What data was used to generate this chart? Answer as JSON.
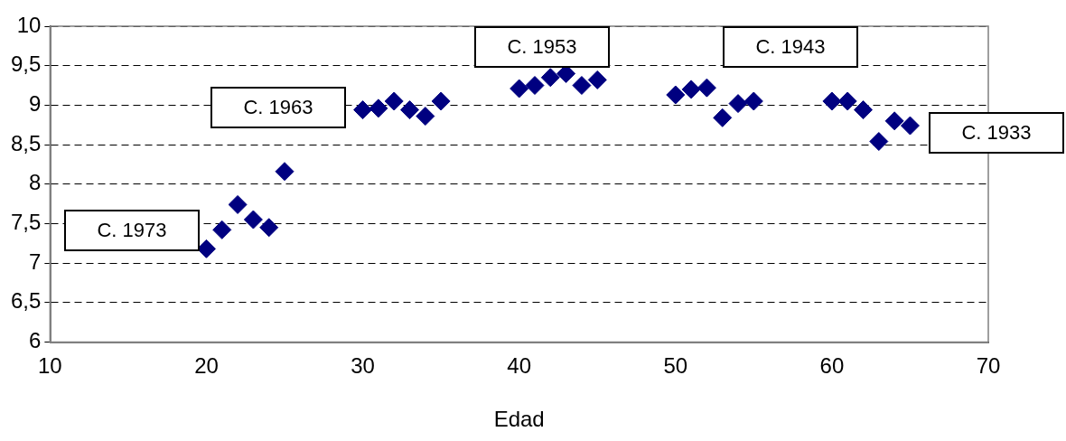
{
  "chart_data": {
    "type": "scatter",
    "xlabel": "Edad",
    "x": [
      20,
      21,
      22,
      23,
      24,
      25,
      30,
      31,
      32,
      33,
      34,
      35,
      40,
      41,
      42,
      43,
      44,
      45,
      50,
      51,
      52,
      53,
      54,
      55,
      60,
      61,
      62,
      63,
      64,
      65
    ],
    "series": [
      {
        "color": "#000080",
        "values": [
          7.18,
          7.42,
          7.74,
          7.55,
          7.45,
          8.16,
          8.94,
          8.96,
          9.05,
          8.94,
          8.86,
          9.05,
          9.21,
          9.25,
          9.35,
          9.4,
          9.25,
          9.32,
          9.13,
          9.2,
          9.22,
          8.84,
          9.02,
          9.05,
          9.05,
          9.05,
          8.94,
          8.54,
          8.8,
          8.74
        ]
      }
    ],
    "xlim": [
      10,
      70
    ],
    "xticks": [
      10,
      20,
      30,
      40,
      50,
      60,
      70
    ],
    "ylim": [
      6,
      10
    ],
    "yticks": [
      6,
      {
        "value": 6.5,
        "label": "6,5"
      },
      7,
      {
        "value": 7.5,
        "label": "7,5"
      },
      8,
      {
        "value": 8.5,
        "label": "8,5"
      },
      9,
      {
        "value": 9.5,
        "label": "9,5"
      },
      10
    ],
    "grid": "y",
    "legend": false,
    "marker": "diamond",
    "annotations": [
      "C. 1973",
      "C. 1963",
      "C. 1953",
      "C. 1943",
      "C. 1933"
    ]
  }
}
